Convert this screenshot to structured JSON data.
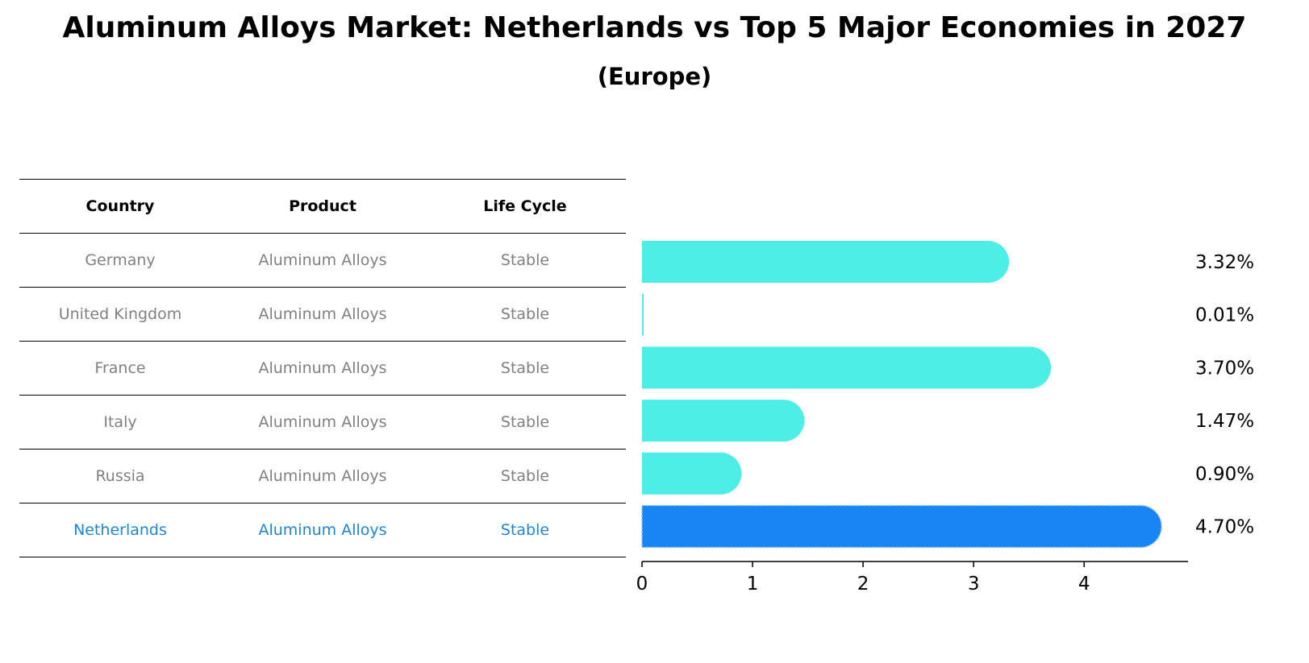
{
  "title": "Aluminum Alloys Market: Netherlands vs Top 5 Major Economies in 2027",
  "subtitle": "(Europe)",
  "table": {
    "headers": [
      "Country",
      "Product",
      "Life Cycle"
    ],
    "rows": [
      {
        "country": "Germany",
        "product": "Aluminum Alloys",
        "life_cycle": "Stable"
      },
      {
        "country": "United Kingdom",
        "product": "Aluminum Alloys",
        "life_cycle": "Stable"
      },
      {
        "country": "France",
        "product": "Aluminum Alloys",
        "life_cycle": "Stable"
      },
      {
        "country": "Italy",
        "product": "Aluminum Alloys",
        "life_cycle": "Stable"
      },
      {
        "country": "Russia",
        "product": "Aluminum Alloys",
        "life_cycle": "Stable"
      },
      {
        "country": "Netherlands",
        "product": "Aluminum Alloys",
        "life_cycle": "Stable"
      }
    ]
  },
  "chart_data": {
    "type": "bar",
    "orientation": "horizontal",
    "title": "Aluminum Alloys Market: Netherlands vs Top 5 Major Economies in 2027",
    "subtitle": "(Europe)",
    "categories": [
      "Germany",
      "United Kingdom",
      "France",
      "Italy",
      "Russia",
      "Netherlands"
    ],
    "values": [
      3.32,
      0.01,
      3.7,
      1.47,
      0.9,
      4.7
    ],
    "value_labels": [
      "3.32%",
      "0.01%",
      "3.70%",
      "1.47%",
      "0.90%",
      "4.70%"
    ],
    "highlight": "Netherlands",
    "xlim": [
      0,
      4.94
    ],
    "xticks": [
      0,
      1,
      2,
      3,
      4
    ],
    "xlabel": "",
    "ylabel": "",
    "grid": false,
    "colors": {
      "default": "#4deee8",
      "highlight": "#1985f5"
    }
  }
}
